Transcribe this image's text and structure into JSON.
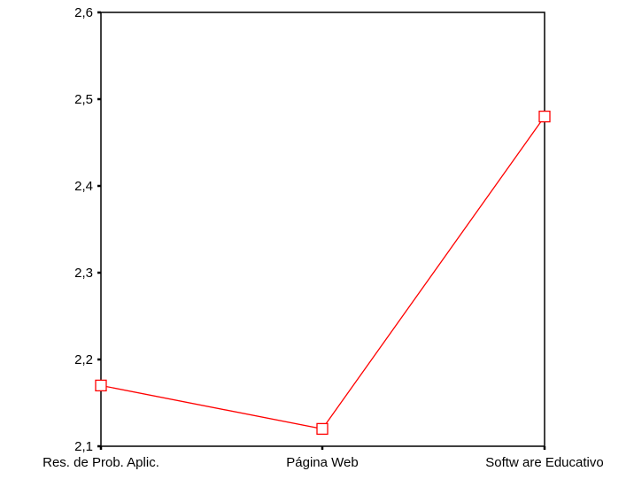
{
  "chart_data": {
    "type": "line",
    "categories": [
      "Res. de Prob. Aplic.",
      "Página Web",
      "Softw are Educativo"
    ],
    "series": [
      {
        "values": [
          2.17,
          2.12,
          2.48
        ],
        "color": "#ff0000",
        "marker": "open-square"
      }
    ],
    "ylim": [
      2.1,
      2.6
    ],
    "yticks": [
      2.1,
      2.2,
      2.3,
      2.4,
      2.5,
      2.6
    ],
    "ytick_labels": [
      "2,1",
      "2,2",
      "2,3",
      "2,4",
      "2,5",
      "2,6"
    ],
    "grid": false,
    "title": "",
    "xlabel": "",
    "ylabel": ""
  }
}
